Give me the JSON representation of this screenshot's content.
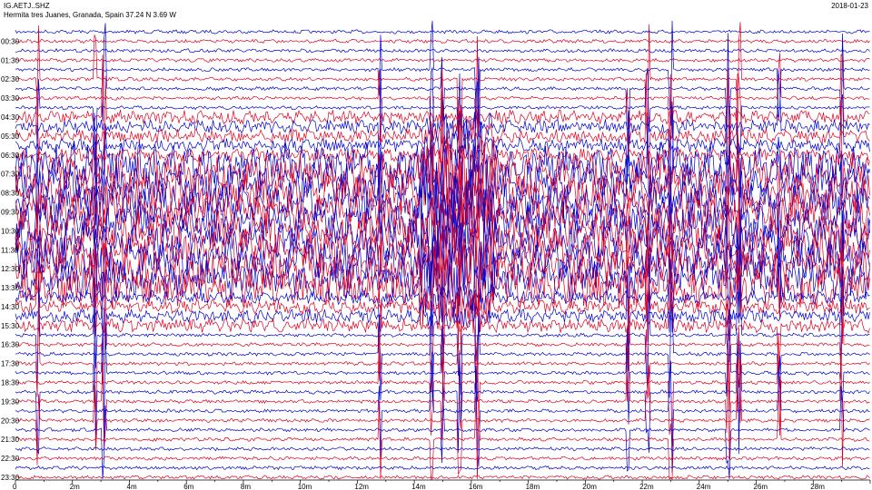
{
  "header": {
    "station": "IG.AETJ..SHZ",
    "location": "Hermita tres Juanes, Granada, Spain  37.24 N 3.69 W",
    "date": "2018-01-23"
  },
  "chart_data": {
    "type": "line",
    "title": "",
    "row_labels": [
      "00:30",
      "01:30",
      "02:30",
      "03:30",
      "04:30",
      "05:30",
      "06:30",
      "07:30",
      "08:30",
      "09:30",
      "10:30",
      "11:30",
      "12:30",
      "13:30",
      "14:30",
      "15:30",
      "16:30",
      "17:30",
      "18:30",
      "19:30",
      "20:30",
      "21:30",
      "22:30",
      "23:30"
    ],
    "x_ticks": [
      "0",
      "2m",
      "4m",
      "6m",
      "8m",
      "10m",
      "12m",
      "14m",
      "16m",
      "18m",
      "20m",
      "22m",
      "24m",
      "26m",
      "28m"
    ],
    "xlim": [
      0,
      30
    ],
    "rows_per_hour": 2,
    "grid": false,
    "colors": {
      "line_a": "#0000cc",
      "line_b": "#dd0022",
      "axis": "#000000"
    }
  }
}
